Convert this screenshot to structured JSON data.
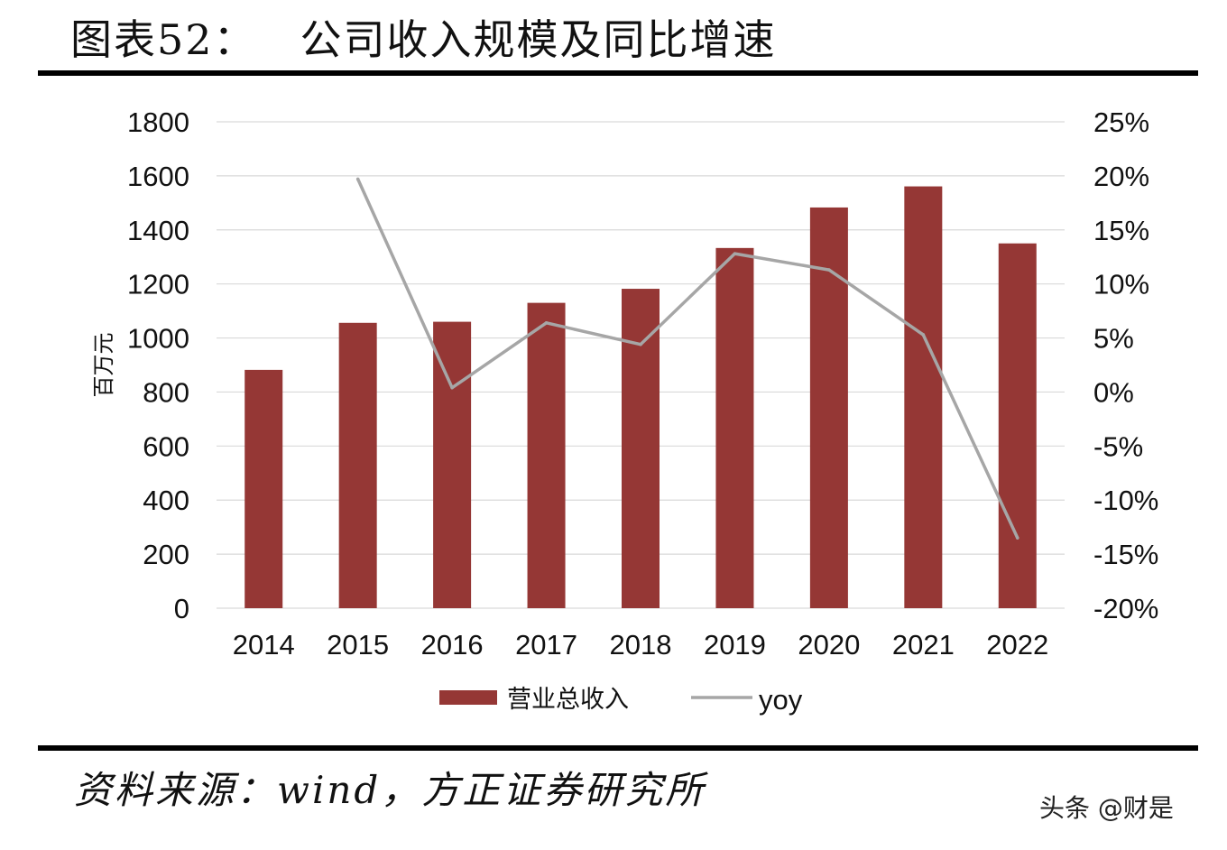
{
  "header": {
    "title_label": "图表52：",
    "title_text": "公司收入规模及同比增速"
  },
  "chart_data": {
    "type": "bar",
    "categories": [
      "2014",
      "2015",
      "2016",
      "2017",
      "2018",
      "2019",
      "2020",
      "2021",
      "2022"
    ],
    "series": [
      {
        "name": "营业总收入",
        "type": "bar",
        "axis": "left",
        "color": "#953735",
        "values": [
          882,
          1056,
          1060,
          1130,
          1182,
          1333,
          1483,
          1561,
          1350
        ]
      },
      {
        "name": "yoy",
        "type": "line",
        "axis": "right",
        "color": "#a6a6a6",
        "values": [
          null,
          19.7,
          0.4,
          6.4,
          4.4,
          12.8,
          11.3,
          5.3,
          -13.5
        ]
      }
    ],
    "ylabel": "百万元",
    "ylim": [
      0,
      1800
    ],
    "y_ticks": [
      0,
      200,
      400,
      600,
      800,
      1000,
      1200,
      1400,
      1600,
      1800
    ],
    "y2lim": [
      -20,
      25
    ],
    "y2_ticks": [
      "-20%",
      "-15%",
      "-10%",
      "-5%",
      "0%",
      "5%",
      "10%",
      "15%",
      "20%",
      "25%"
    ],
    "grid": true,
    "legend": "bottom"
  },
  "footer": {
    "source": "资料来源：wind，方正证券研究所",
    "watermark": "头条 @财是"
  }
}
